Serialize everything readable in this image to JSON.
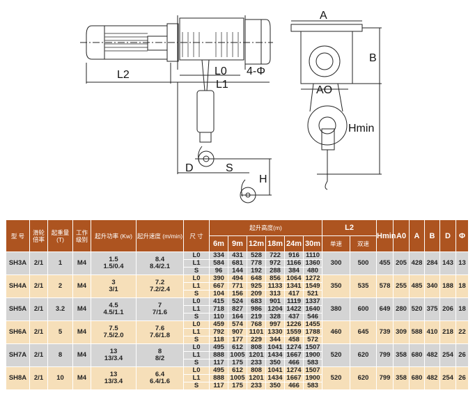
{
  "drawing": {
    "labels": {
      "L2": "L2",
      "L0": "L0",
      "L1": "L1",
      "phi": "4-Φ",
      "D": "D",
      "S": "S",
      "H": "H",
      "A": "A",
      "B": "B",
      "AO": "AO",
      "Hmin": "Hmin"
    }
  },
  "table": {
    "headers": {
      "model": "型 号",
      "ratio": "滑轮倍率",
      "load": "起重量 (T)",
      "duty": "工作级别",
      "power": "起升功率 (Kw)",
      "speed": "起升速度 (m/min)",
      "size": "尺 寸",
      "lift_height": "起升高度(m)",
      "heights": [
        "6m",
        "9m",
        "12m",
        "18m",
        "24m",
        "30m"
      ],
      "l2": "L2",
      "single": "单速",
      "double": "双速",
      "hmin": "Hmin",
      "a0": "A0",
      "a": "A",
      "b": "B",
      "d": "D",
      "phi": "Φ"
    },
    "rows": [
      {
        "model": "SH3A",
        "ratio": "2/1",
        "load": "1",
        "duty": "M4",
        "power": [
          "1.5",
          "1.5/0.4"
        ],
        "speed": [
          "8.4",
          "8.4/2.1"
        ],
        "dims": [
          {
            "label": "L0",
            "values": [
              "334",
              "431",
              "528",
              "722",
              "916",
              "1110"
            ]
          },
          {
            "label": "L1",
            "values": [
              "584",
              "681",
              "778",
              "972",
              "1166",
              "1360"
            ]
          },
          {
            "label": "S",
            "values": [
              "96",
              "144",
              "192",
              "288",
              "384",
              "480"
            ]
          }
        ],
        "single": "300",
        "double": "500",
        "hmin": "455",
        "a0": "205",
        "a": "428",
        "b": "284",
        "d": "143",
        "phi": "13"
      },
      {
        "model": "SH4A",
        "ratio": "2/1",
        "load": "2",
        "duty": "M4",
        "power": [
          "3",
          "3/1"
        ],
        "speed": [
          "7.2",
          "7.2/2.4"
        ],
        "dims": [
          {
            "label": "L0",
            "values": [
              "390",
              "494",
              "648",
              "856",
              "1064",
              "1272"
            ]
          },
          {
            "label": "L1",
            "values": [
              "667",
              "771",
              "925",
              "1133",
              "1341",
              "1549"
            ]
          },
          {
            "label": "S",
            "values": [
              "104",
              "156",
              "209",
              "313",
              "417",
              "521"
            ]
          }
        ],
        "single": "350",
        "double": "535",
        "hmin": "578",
        "a0": "255",
        "a": "485",
        "b": "340",
        "d": "188",
        "phi": "18"
      },
      {
        "model": "SH5A",
        "ratio": "2/1",
        "load": "3.2",
        "duty": "M4",
        "power": [
          "4.5",
          "4.5/1.1"
        ],
        "speed": [
          "7",
          "7/1.6"
        ],
        "dims": [
          {
            "label": "L0",
            "values": [
              "415",
              "524",
              "683",
              "901",
              "1119",
              "1337"
            ]
          },
          {
            "label": "L1",
            "values": [
              "718",
              "827",
              "986",
              "1204",
              "1422",
              "1640"
            ]
          },
          {
            "label": "S",
            "values": [
              "110",
              "164",
              "219",
              "328",
              "437",
              "546"
            ]
          }
        ],
        "single": "380",
        "double": "600",
        "hmin": "649",
        "a0": "280",
        "a": "520",
        "b": "375",
        "d": "206",
        "phi": "18"
      },
      {
        "model": "SH6A",
        "ratio": "2/1",
        "load": "5",
        "duty": "M4",
        "power": [
          "7.5",
          "7.5/2.0"
        ],
        "speed": [
          "7.6",
          "7.6/1.8"
        ],
        "dims": [
          {
            "label": "L0",
            "values": [
              "459",
              "574",
              "768",
              "997",
              "1226",
              "1455"
            ]
          },
          {
            "label": "L1",
            "values": [
              "792",
              "907",
              "1101",
              "1330",
              "1559",
              "1788"
            ]
          },
          {
            "label": "S",
            "values": [
              "118",
              "177",
              "229",
              "344",
              "458",
              "572"
            ]
          }
        ],
        "single": "460",
        "double": "645",
        "hmin": "739",
        "a0": "309",
        "a": "588",
        "b": "410",
        "d": "218",
        "phi": "22"
      },
      {
        "model": "SH7A",
        "ratio": "2/1",
        "load": "8",
        "duty": "M4",
        "power": [
          "13",
          "13/3.4"
        ],
        "speed": [
          "8",
          "8/2"
        ],
        "dims": [
          {
            "label": "L0",
            "values": [
              "495",
              "612",
              "808",
              "1041",
              "1274",
              "1507"
            ]
          },
          {
            "label": "L1",
            "values": [
              "888",
              "1005",
              "1201",
              "1434",
              "1667",
              "1900"
            ]
          },
          {
            "label": "S",
            "values": [
              "117",
              "175",
              "233",
              "350",
              "466",
              "583"
            ]
          }
        ],
        "single": "520",
        "double": "620",
        "hmin": "799",
        "a0": "358",
        "a": "680",
        "b": "482",
        "d": "254",
        "phi": "26"
      },
      {
        "model": "SH8A",
        "ratio": "2/1",
        "load": "10",
        "duty": "M4",
        "power": [
          "13",
          "13/3.4"
        ],
        "speed": [
          "6.4",
          "6.4/1.6"
        ],
        "dims": [
          {
            "label": "L0",
            "values": [
              "495",
              "612",
              "808",
              "1041",
              "1274",
              "1507"
            ]
          },
          {
            "label": "L1",
            "values": [
              "888",
              "1005",
              "1201",
              "1434",
              "1667",
              "1900"
            ]
          },
          {
            "label": "S",
            "values": [
              "117",
              "175",
              "233",
              "350",
              "466",
              "583"
            ]
          }
        ],
        "single": "520",
        "double": "620",
        "hmin": "799",
        "a0": "358",
        "a": "680",
        "b": "482",
        "d": "254",
        "phi": "26"
      }
    ]
  }
}
